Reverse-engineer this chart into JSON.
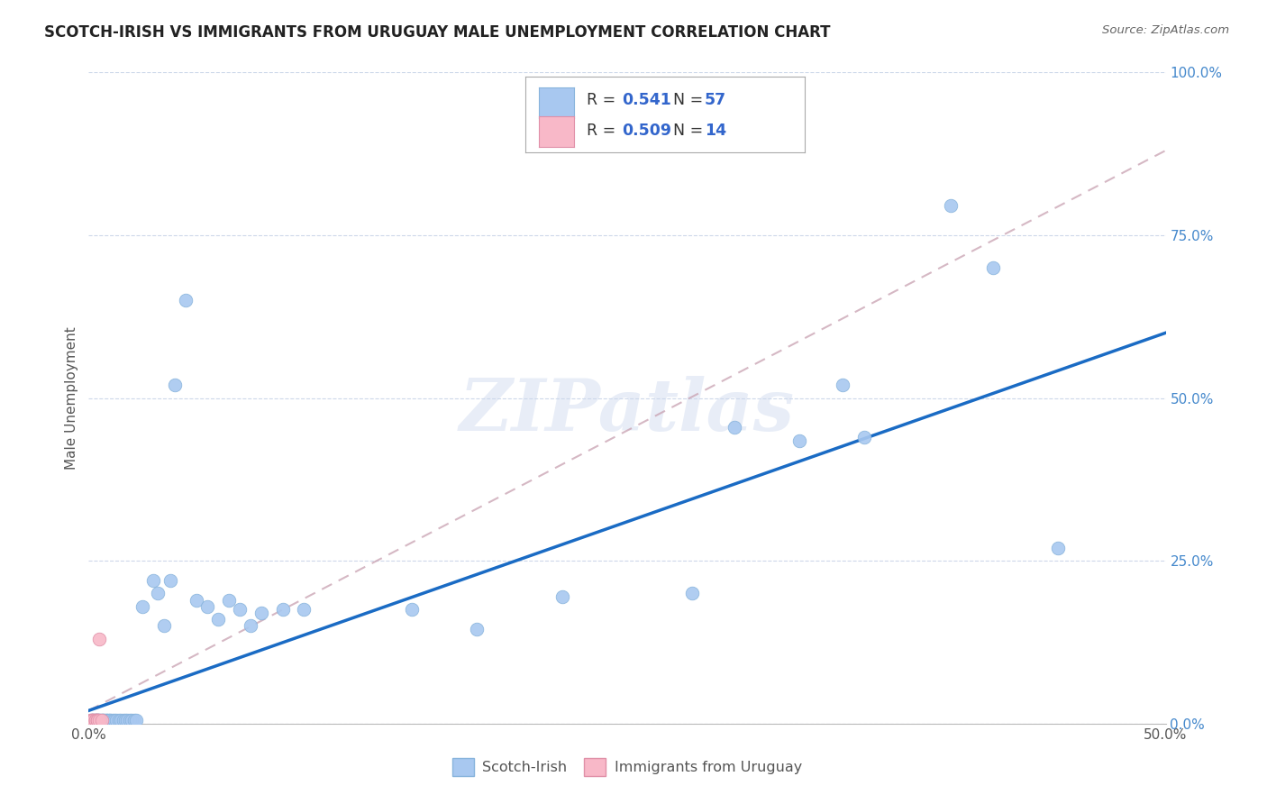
{
  "title": "SCOTCH-IRISH VS IMMIGRANTS FROM URUGUAY MALE UNEMPLOYMENT CORRELATION CHART",
  "source": "Source: ZipAtlas.com",
  "ylabel": "Male Unemployment",
  "xlim": [
    0.0,
    0.5
  ],
  "ylim": [
    0.0,
    1.0
  ],
  "watermark": "ZIPatlas",
  "scotch_irish_color": "#a8c8f0",
  "uruguay_color": "#f8b8c8",
  "trend_blue": "#1a6bc4",
  "trend_pink_dash": "#c8a0b0",
  "scotch_irish_scatter": [
    [
      0.001,
      0.005
    ],
    [
      0.002,
      0.005
    ],
    [
      0.002,
      0.005
    ],
    [
      0.003,
      0.005
    ],
    [
      0.003,
      0.005
    ],
    [
      0.004,
      0.005
    ],
    [
      0.004,
      0.005
    ],
    [
      0.005,
      0.005
    ],
    [
      0.005,
      0.005
    ],
    [
      0.006,
      0.005
    ],
    [
      0.006,
      0.005
    ],
    [
      0.007,
      0.005
    ],
    [
      0.007,
      0.005
    ],
    [
      0.008,
      0.005
    ],
    [
      0.008,
      0.005
    ],
    [
      0.009,
      0.005
    ],
    [
      0.01,
      0.005
    ],
    [
      0.01,
      0.005
    ],
    [
      0.011,
      0.005
    ],
    [
      0.012,
      0.005
    ],
    [
      0.013,
      0.005
    ],
    [
      0.014,
      0.005
    ],
    [
      0.015,
      0.005
    ],
    [
      0.016,
      0.005
    ],
    [
      0.017,
      0.005
    ],
    [
      0.018,
      0.005
    ],
    [
      0.019,
      0.005
    ],
    [
      0.02,
      0.005
    ],
    [
      0.021,
      0.005
    ],
    [
      0.022,
      0.005
    ],
    [
      0.025,
      0.18
    ],
    [
      0.03,
      0.22
    ],
    [
      0.032,
      0.2
    ],
    [
      0.035,
      0.15
    ],
    [
      0.038,
      0.22
    ],
    [
      0.04,
      0.52
    ],
    [
      0.045,
      0.65
    ],
    [
      0.05,
      0.19
    ],
    [
      0.055,
      0.18
    ],
    [
      0.06,
      0.16
    ],
    [
      0.065,
      0.19
    ],
    [
      0.07,
      0.175
    ],
    [
      0.075,
      0.15
    ],
    [
      0.08,
      0.17
    ],
    [
      0.09,
      0.175
    ],
    [
      0.1,
      0.175
    ],
    [
      0.15,
      0.175
    ],
    [
      0.18,
      0.145
    ],
    [
      0.22,
      0.195
    ],
    [
      0.28,
      0.2
    ],
    [
      0.3,
      0.455
    ],
    [
      0.33,
      0.435
    ],
    [
      0.35,
      0.52
    ],
    [
      0.36,
      0.44
    ],
    [
      0.4,
      0.795
    ],
    [
      0.42,
      0.7
    ],
    [
      0.45,
      0.27
    ]
  ],
  "uruguay_scatter": [
    [
      0.001,
      0.005
    ],
    [
      0.001,
      0.005
    ],
    [
      0.002,
      0.005
    ],
    [
      0.002,
      0.005
    ],
    [
      0.002,
      0.005
    ],
    [
      0.003,
      0.005
    ],
    [
      0.003,
      0.005
    ],
    [
      0.003,
      0.005
    ],
    [
      0.004,
      0.005
    ],
    [
      0.004,
      0.005
    ],
    [
      0.004,
      0.005
    ],
    [
      0.005,
      0.005
    ],
    [
      0.005,
      0.13
    ],
    [
      0.006,
      0.005
    ]
  ],
  "scotch_irish_trend_x": [
    0.0,
    0.5
  ],
  "scotch_irish_trend_y": [
    0.02,
    0.6
  ],
  "uruguay_trend_x": [
    0.0,
    0.5
  ],
  "uruguay_trend_y": [
    0.02,
    0.88
  ]
}
